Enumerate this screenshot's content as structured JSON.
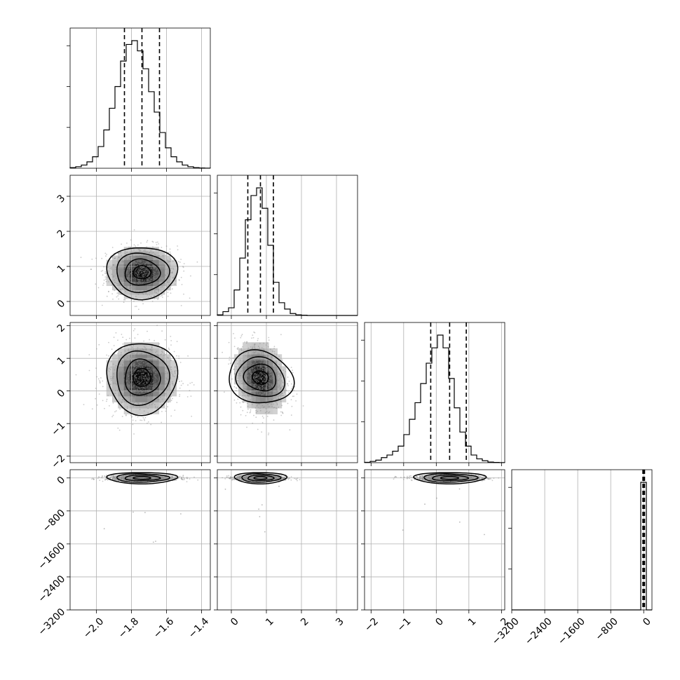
{
  "chart_data": {
    "type": "corner",
    "parameters": [
      {
        "range": [
          -2.15,
          -1.35
        ],
        "ticks": [
          -2.0,
          -1.8,
          -1.6,
          -1.4
        ],
        "tick_labels": [
          "−2.0",
          "−1.8",
          "−1.6",
          "−1.4"
        ],
        "median": -1.74,
        "q16": -1.84,
        "q84": -1.64,
        "sd": 0.1
      },
      {
        "range": [
          -0.4,
          3.6
        ],
        "ticks": [
          0,
          1,
          2,
          3
        ],
        "tick_labels": [
          "0",
          "1",
          "2",
          "3"
        ],
        "median": 0.83,
        "q16": 0.47,
        "q84": 1.2,
        "sd": 0.37
      },
      {
        "range": [
          -2.2,
          2.1
        ],
        "ticks": [
          -2,
          -1,
          0,
          1,
          2
        ],
        "tick_labels": [
          "−2",
          "−1",
          "0",
          "1",
          "2"
        ],
        "median": 0.41,
        "q16": -0.17,
        "q84": 0.92,
        "sd": 0.55
      },
      {
        "range": [
          -3200,
          200
        ],
        "ticks": [
          -3200,
          -2400,
          -1600,
          -800,
          0
        ],
        "tick_labels": [
          "−3200",
          "−2400",
          "−1600",
          "−800",
          "0"
        ],
        "median": 0,
        "q16": -20,
        "q84": 20,
        "sd": 30
      }
    ],
    "histograms": [
      {
        "param": 0,
        "bin_start": -2.15,
        "bin_width": 0.032,
        "counts": [
          0.005,
          0.012,
          0.025,
          0.05,
          0.09,
          0.17,
          0.3,
          0.47,
          0.64,
          0.84,
          0.97,
          1.0,
          0.92,
          0.78,
          0.6,
          0.44,
          0.28,
          0.16,
          0.09,
          0.05,
          0.025,
          0.012,
          0.005,
          0.002,
          0.001
        ]
      },
      {
        "param": 1,
        "bin_start": -0.4,
        "bin_width": 0.16,
        "counts": [
          0.005,
          0.03,
          0.06,
          0.2,
          0.45,
          0.75,
          0.94,
          1.0,
          0.84,
          0.55,
          0.26,
          0.1,
          0.05,
          0.015,
          0.005,
          0.002,
          0.0,
          0.0,
          0.0,
          0.0,
          0.0,
          0.0,
          0.0,
          0.0,
          0.0
        ]
      },
      {
        "param": 2,
        "bin_start": -2.2,
        "bin_width": 0.172,
        "counts": [
          0.003,
          0.01,
          0.02,
          0.04,
          0.06,
          0.09,
          0.13,
          0.22,
          0.34,
          0.47,
          0.62,
          0.78,
          0.9,
          1.0,
          0.9,
          0.66,
          0.43,
          0.24,
          0.13,
          0.06,
          0.03,
          0.015,
          0.005,
          0.002,
          0.001
        ]
      },
      {
        "param": 3,
        "bin_start": -3200,
        "bin_width": 136,
        "counts": [
          0,
          0,
          0,
          0,
          0,
          0,
          0,
          0,
          0,
          0,
          0,
          0,
          0,
          0,
          0,
          0,
          0,
          0,
          0,
          0,
          0,
          0,
          0,
          1.0,
          0
        ]
      }
    ],
    "scatter_pairs": [
      {
        "x_param": 0,
        "y_param": 1,
        "correlation": 0.0
      },
      {
        "x_param": 0,
        "y_param": 2,
        "correlation": 0.0
      },
      {
        "x_param": 1,
        "y_param": 2,
        "correlation": -0.18
      },
      {
        "x_param": 0,
        "y_param": 3,
        "correlation": 0.0
      },
      {
        "x_param": 1,
        "y_param": 3,
        "correlation": 0.0
      },
      {
        "x_param": 2,
        "y_param": 3,
        "correlation": 0.0
      }
    ],
    "contour_levels_sigma": [
      0.5,
      1.0,
      1.5,
      2.0
    ],
    "grid": true,
    "quantile_lines": "dashed"
  }
}
